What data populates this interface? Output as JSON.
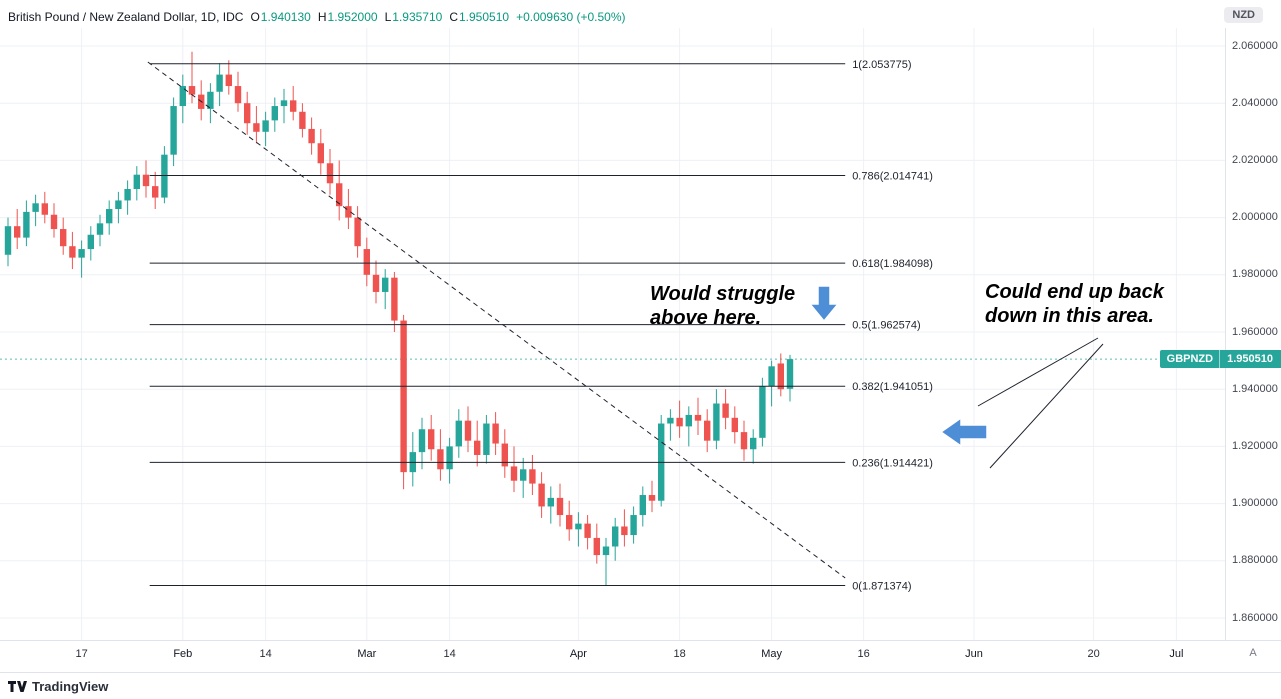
{
  "header": {
    "symbol_title": "British Pound / New Zealand Dollar, 1D, IDC",
    "ohlc": [
      {
        "label": "O",
        "value": "1.940130"
      },
      {
        "label": "H",
        "value": "1.952000"
      },
      {
        "label": "L",
        "value": "1.935710"
      },
      {
        "label": "C",
        "value": "1.950510"
      }
    ],
    "change": "+0.009630 (+0.50%)",
    "currency_badge": "NZD"
  },
  "price_tag": {
    "symbol": "GBPNZD",
    "price": "1.950510",
    "value": 1.95051
  },
  "axis": {
    "price_ticks": [
      "2.060000",
      "2.040000",
      "2.020000",
      "2.000000",
      "1.980000",
      "1.960000",
      "1.940000",
      "1.920000",
      "1.900000",
      "1.880000",
      "1.860000"
    ],
    "time_ticks": [
      {
        "label": "17",
        "i": 8,
        "major": false
      },
      {
        "label": "Feb",
        "i": 19,
        "major": true
      },
      {
        "label": "14",
        "i": 28,
        "major": false
      },
      {
        "label": "Mar",
        "i": 39,
        "major": true
      },
      {
        "label": "14",
        "i": 48,
        "major": false
      },
      {
        "label": "Apr",
        "i": 62,
        "major": true
      },
      {
        "label": "18",
        "i": 73,
        "major": false
      },
      {
        "label": "May",
        "i": 83,
        "major": true
      },
      {
        "label": "16",
        "i": 93,
        "major": false
      },
      {
        "label": "Jun",
        "i": 105,
        "major": true
      },
      {
        "label": "20",
        "i": 118,
        "major": false
      },
      {
        "label": "Jul",
        "i": 127,
        "major": true
      }
    ],
    "scale_mode": "A"
  },
  "annotations": {
    "struggle_note": {
      "lines": [
        "Would struggle",
        "above here."
      ]
    },
    "area_note": {
      "lines": [
        "Could end up back",
        "down in this area."
      ]
    }
  },
  "footer": {
    "brand": "TradingView"
  },
  "colors": {
    "up": "#26a69a",
    "down": "#ef5350",
    "header_value": "#089981",
    "arrow_blue": "#4e8ed7",
    "grid": "#eef0f6",
    "drawing": "#1e222d",
    "annotation_text": "#000000"
  },
  "chart_data": {
    "type": "candlestick",
    "title": "British Pound / New Zealand Dollar, 1D, IDC",
    "symbol": "GBPNZD",
    "timeframe": "1D",
    "ylim": [
      1.86,
      2.06
    ],
    "y_tick_step": 0.02,
    "grid": true,
    "last": {
      "o": 1.94013,
      "h": 1.952,
      "l": 1.93571,
      "c": 1.95051,
      "change": "+0.009630",
      "change_pct": "+0.50%"
    },
    "fib_levels": [
      {
        "label": "1(2.053775)",
        "value": 2.053775
      },
      {
        "label": "0.786(2.014741)",
        "value": 2.014741
      },
      {
        "label": "0.618(1.984098)",
        "value": 1.984098
      },
      {
        "label": "0.5(1.962574)",
        "value": 1.962574
      },
      {
        "label": "0.382(1.941051)",
        "value": 1.941051
      },
      {
        "label": "0.236(1.914421)",
        "value": 1.914421
      },
      {
        "label": "0(1.871374)",
        "value": 1.871374
      }
    ],
    "fib_span": {
      "i1": 15.4,
      "i2": 91
    },
    "trendline": {
      "style": "dashed",
      "i1": 15.2,
      "p1": 2.0544,
      "i2": 91,
      "p2": 1.874
    },
    "candles": [
      [
        "Jan 5",
        1.987,
        2.0,
        1.983,
        1.997
      ],
      [
        "Jan 6",
        1.997,
        2.003,
        1.989,
        1.993
      ],
      [
        "Jan 7",
        1.993,
        2.006,
        1.99,
        2.002
      ],
      [
        "Jan 10",
        2.002,
        2.008,
        1.997,
        2.005
      ],
      [
        "Jan 11",
        2.005,
        2.009,
        1.998,
        2.001
      ],
      [
        "Jan 12",
        2.001,
        2.005,
        1.993,
        1.996
      ],
      [
        "Jan 13",
        1.996,
        2.0,
        1.987,
        1.99
      ],
      [
        "Jan 14",
        1.99,
        1.995,
        1.982,
        1.986
      ],
      [
        "Jan 17",
        1.986,
        1.992,
        1.979,
        1.989
      ],
      [
        "Jan 18",
        1.989,
        1.997,
        1.985,
        1.994
      ],
      [
        "Jan 19",
        1.994,
        2.001,
        1.99,
        1.998
      ],
      [
        "Jan 20",
        1.998,
        2.006,
        1.994,
        2.003
      ],
      [
        "Jan 21",
        2.003,
        2.009,
        1.998,
        2.006
      ],
      [
        "Jan 24",
        2.006,
        2.013,
        2.001,
        2.01
      ],
      [
        "Jan 25",
        2.01,
        2.018,
        2.006,
        2.015
      ],
      [
        "Jan 26",
        2.015,
        2.02,
        2.007,
        2.011
      ],
      [
        "Jan 27",
        2.011,
        2.016,
        2.003,
        2.007
      ],
      [
        "Jan 28",
        2.007,
        2.025,
        2.005,
        2.022
      ],
      [
        "Jan 31",
        2.022,
        2.042,
        2.018,
        2.039
      ],
      [
        "Feb 1",
        2.039,
        2.05,
        2.033,
        2.046
      ],
      [
        "Feb 2",
        2.046,
        2.058,
        2.04,
        2.043
      ],
      [
        "Feb 3",
        2.043,
        2.048,
        2.034,
        2.038
      ],
      [
        "Feb 4",
        2.038,
        2.047,
        2.033,
        2.044
      ],
      [
        "Feb 7",
        2.044,
        2.054,
        2.039,
        2.05
      ],
      [
        "Feb 8",
        2.05,
        2.055,
        2.043,
        2.046
      ],
      [
        "Feb 9",
        2.046,
        2.051,
        2.037,
        2.04
      ],
      [
        "Feb 10",
        2.04,
        2.044,
        2.029,
        2.033
      ],
      [
        "Feb 11",
        2.033,
        2.039,
        2.026,
        2.03
      ],
      [
        "Feb 14",
        2.03,
        2.037,
        2.025,
        2.034
      ],
      [
        "Feb 15",
        2.034,
        2.042,
        2.03,
        2.039
      ],
      [
        "Feb 16",
        2.039,
        2.045,
        2.033,
        2.041
      ],
      [
        "Feb 17",
        2.041,
        2.046,
        2.034,
        2.037
      ],
      [
        "Feb 18",
        2.037,
        2.04,
        2.028,
        2.031
      ],
      [
        "Feb 21",
        2.031,
        2.035,
        2.022,
        2.026
      ],
      [
        "Feb 22",
        2.026,
        2.031,
        2.015,
        2.019
      ],
      [
        "Feb 23",
        2.019,
        2.024,
        2.008,
        2.012
      ],
      [
        "Feb 24",
        2.012,
        2.02,
        1.999,
        2.004
      ],
      [
        "Feb 25",
        2.004,
        2.01,
        1.996,
        2.0
      ],
      [
        "Feb 28",
        2.0,
        2.004,
        1.986,
        1.99
      ],
      [
        "Mar 1",
        1.989,
        1.993,
        1.976,
        1.98
      ],
      [
        "Mar 2",
        1.98,
        1.985,
        1.97,
        1.974
      ],
      [
        "Mar 3",
        1.974,
        1.982,
        1.968,
        1.979
      ],
      [
        "Mar 4",
        1.979,
        1.981,
        1.96,
        1.964
      ],
      [
        "Mar 7",
        1.964,
        1.966,
        1.905,
        1.911
      ],
      [
        "Mar 8",
        1.911,
        1.925,
        1.906,
        1.918
      ],
      [
        "Mar 9",
        1.918,
        1.93,
        1.912,
        1.926
      ],
      [
        "Mar 10",
        1.926,
        1.931,
        1.915,
        1.919
      ],
      [
        "Mar 11",
        1.919,
        1.926,
        1.908,
        1.912
      ],
      [
        "Mar 14",
        1.912,
        1.923,
        1.907,
        1.92
      ],
      [
        "Mar 15",
        1.92,
        1.933,
        1.916,
        1.929
      ],
      [
        "Mar 16",
        1.929,
        1.934,
        1.918,
        1.922
      ],
      [
        "Mar 17",
        1.922,
        1.929,
        1.913,
        1.917
      ],
      [
        "Mar 18",
        1.917,
        1.931,
        1.914,
        1.928
      ],
      [
        "Mar 21",
        1.928,
        1.932,
        1.917,
        1.921
      ],
      [
        "Mar 22",
        1.921,
        1.926,
        1.909,
        1.913
      ],
      [
        "Mar 23",
        1.913,
        1.92,
        1.904,
        1.908
      ],
      [
        "Mar 24",
        1.908,
        1.916,
        1.902,
        1.912
      ],
      [
        "Mar 25",
        1.912,
        1.917,
        1.903,
        1.907
      ],
      [
        "Mar 28",
        1.907,
        1.911,
        1.895,
        1.899
      ],
      [
        "Mar 29",
        1.899,
        1.906,
        1.893,
        1.902
      ],
      [
        "Mar 30",
        1.902,
        1.907,
        1.892,
        1.896
      ],
      [
        "Mar 31",
        1.896,
        1.901,
        1.887,
        1.891
      ],
      [
        "Apr 1",
        1.891,
        1.897,
        1.885,
        1.893
      ],
      [
        "Apr 4",
        1.893,
        1.896,
        1.884,
        1.888
      ],
      [
        "Apr 5",
        1.888,
        1.893,
        1.879,
        1.882
      ],
      [
        "Apr 6",
        1.882,
        1.888,
        1.8714,
        1.885
      ],
      [
        "Apr 7",
        1.885,
        1.895,
        1.88,
        1.892
      ],
      [
        "Apr 8",
        1.892,
        1.898,
        1.885,
        1.889
      ],
      [
        "Apr 11",
        1.889,
        1.899,
        1.886,
        1.896
      ],
      [
        "Apr 12",
        1.896,
        1.906,
        1.892,
        1.903
      ],
      [
        "Apr 13",
        1.903,
        1.908,
        1.897,
        1.901
      ],
      [
        "Apr 14",
        1.901,
        1.931,
        1.899,
        1.928
      ],
      [
        "Apr 15",
        1.928,
        1.933,
        1.922,
        1.93
      ],
      [
        "Apr 18",
        1.93,
        1.936,
        1.923,
        1.927
      ],
      [
        "Apr 19",
        1.927,
        1.934,
        1.92,
        1.931
      ],
      [
        "Apr 20",
        1.931,
        1.937,
        1.924,
        1.929
      ],
      [
        "Apr 21",
        1.929,
        1.933,
        1.918,
        1.922
      ],
      [
        "Apr 22",
        1.922,
        1.94,
        1.919,
        1.935
      ],
      [
        "Apr 25",
        1.935,
        1.94,
        1.926,
        1.93
      ],
      [
        "Apr 26",
        1.93,
        1.934,
        1.921,
        1.925
      ],
      [
        "Apr 27",
        1.925,
        1.929,
        1.915,
        1.919
      ],
      [
        "Apr 28",
        1.919,
        1.926,
        1.914,
        1.923
      ],
      [
        "Apr 29",
        1.923,
        1.944,
        1.92,
        1.941
      ],
      [
        "May 2",
        1.941,
        1.95,
        1.934,
        1.948
      ],
      [
        "May 3",
        1.949,
        1.9525,
        1.9375,
        1.94
      ],
      [
        "May 4",
        1.94013,
        1.952,
        1.93571,
        1.95051
      ]
    ]
  }
}
